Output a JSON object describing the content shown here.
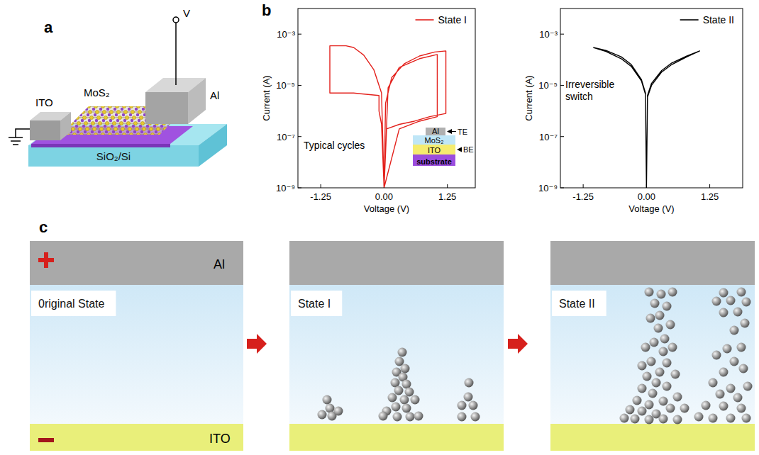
{
  "panel_a": {
    "letter": "a",
    "labels": {
      "mos2": "MoS₂",
      "ito": "ITO",
      "al": "Al",
      "substrate": "SiO₂/Si",
      "voltage": "V"
    }
  },
  "panel_b": {
    "letter": "b",
    "inset": {
      "layers": [
        "Al",
        "MoS₂",
        "ITO",
        "substrate"
      ],
      "top_electrode": "TE",
      "bottom_electrode": "BE"
    }
  },
  "chart_data": [
    {
      "type": "line",
      "log": "y",
      "grid": false,
      "legend": "upper right",
      "xlabel": "Voltage (V)",
      "ylabel": "Current (A)",
      "xlim": [
        -1.7,
        1.8
      ],
      "ylim": [
        1e-09,
        0.01
      ],
      "xticks": [
        -1.25,
        {
          "value": 0,
          "label": "0.00"
        },
        1.25
      ],
      "yticks": [
        {
          "value": 1e-09,
          "label": "10⁻⁹"
        },
        {
          "value": 1e-07,
          "label": "10⁻⁷"
        },
        {
          "value": 1e-05,
          "label": "10⁻⁵"
        },
        {
          "value": 0.001,
          "label": "10⁻³"
        }
      ],
      "annotations": [
        {
          "text": "Typical cycles"
        }
      ],
      "series": [
        {
          "name": "State I",
          "color": "#e3201b",
          "line_style": "solid",
          "x": [
            0,
            0.05,
            0.3,
            0.6,
            0.9,
            1.22,
            1.22,
            1.0,
            0.7,
            0.4,
            0.15,
            0.03,
            0,
            -0.05,
            -0.2,
            -0.4,
            -0.6,
            -0.75,
            -1.07,
            -1.07,
            -0.6,
            -0.1,
            -0.1,
            -0.05,
            0,
            0.3,
            0.7,
            1.05,
            1.05,
            0.7,
            0.3,
            0.08,
            0
          ],
          "values": [
            1e-09,
            2e-07,
            3e-07,
            4e-07,
            6e-07,
            8e-07,
            0.00022,
            0.0002,
            0.00014,
            7e-05,
            2e-05,
            2e-06,
            1e-09,
            5e-06,
            4e-05,
            0.00015,
            0.0003,
            0.00035,
            0.00035,
            5e-06,
            5e-06,
            4e-06,
            1e-06,
            3e-07,
            1e-09,
            2e-07,
            4e-07,
            6e-07,
            0.00016,
            0.00011,
            5e-05,
            8e-06,
            1e-09
          ]
        }
      ]
    },
    {
      "type": "line",
      "log": "y",
      "grid": false,
      "legend": "upper right",
      "xlabel": "Voltage (V)",
      "ylabel": "Current (A)",
      "xlim": [
        -1.7,
        1.9
      ],
      "ylim": [
        1e-09,
        0.01
      ],
      "xticks": [
        -1.25,
        {
          "value": 0,
          "label": "0.00"
        },
        1.25
      ],
      "yticks": [
        {
          "value": 1e-09,
          "label": "10⁻⁹"
        },
        {
          "value": 1e-07,
          "label": "10⁻⁷"
        },
        {
          "value": 1e-05,
          "label": "10⁻⁵"
        },
        {
          "value": 0.001,
          "label": "10⁻³"
        }
      ],
      "annotations": [
        {
          "text": "Irreversible switch"
        }
      ],
      "series": [
        {
          "name": "State II",
          "color": "#000000",
          "line_style": "solid",
          "x": [
            -1.05,
            -0.8,
            -0.5,
            -0.3,
            -0.1,
            -0.02,
            0,
            0.02,
            0.1,
            0.3,
            0.5,
            0.8,
            1.05,
            0.8,
            0.5,
            0.3,
            0.1,
            0.02,
            0,
            -0.02,
            -0.1,
            -0.3,
            -0.5,
            -0.8,
            -1.05
          ],
          "values": [
            0.0003,
            0.00023,
            0.00013,
            6.5e-05,
            1.7e-05,
            5e-06,
            1e-09,
            4e-06,
            1.2e-05,
            3.8e-05,
            7.5e-05,
            0.00014,
            0.00022,
            0.00013,
            6.5e-05,
            3.3e-05,
            1e-05,
            3.5e-06,
            1e-09,
            4.5e-06,
            1.5e-05,
            5.5e-05,
            0.00011,
            0.00021,
            0.0003
          ]
        }
      ]
    }
  ],
  "panel_c": {
    "letter": "c",
    "top_electrode": "Al",
    "bottom_electrode": "ITO",
    "states": [
      "0riginal State",
      "State I",
      "State II"
    ]
  }
}
